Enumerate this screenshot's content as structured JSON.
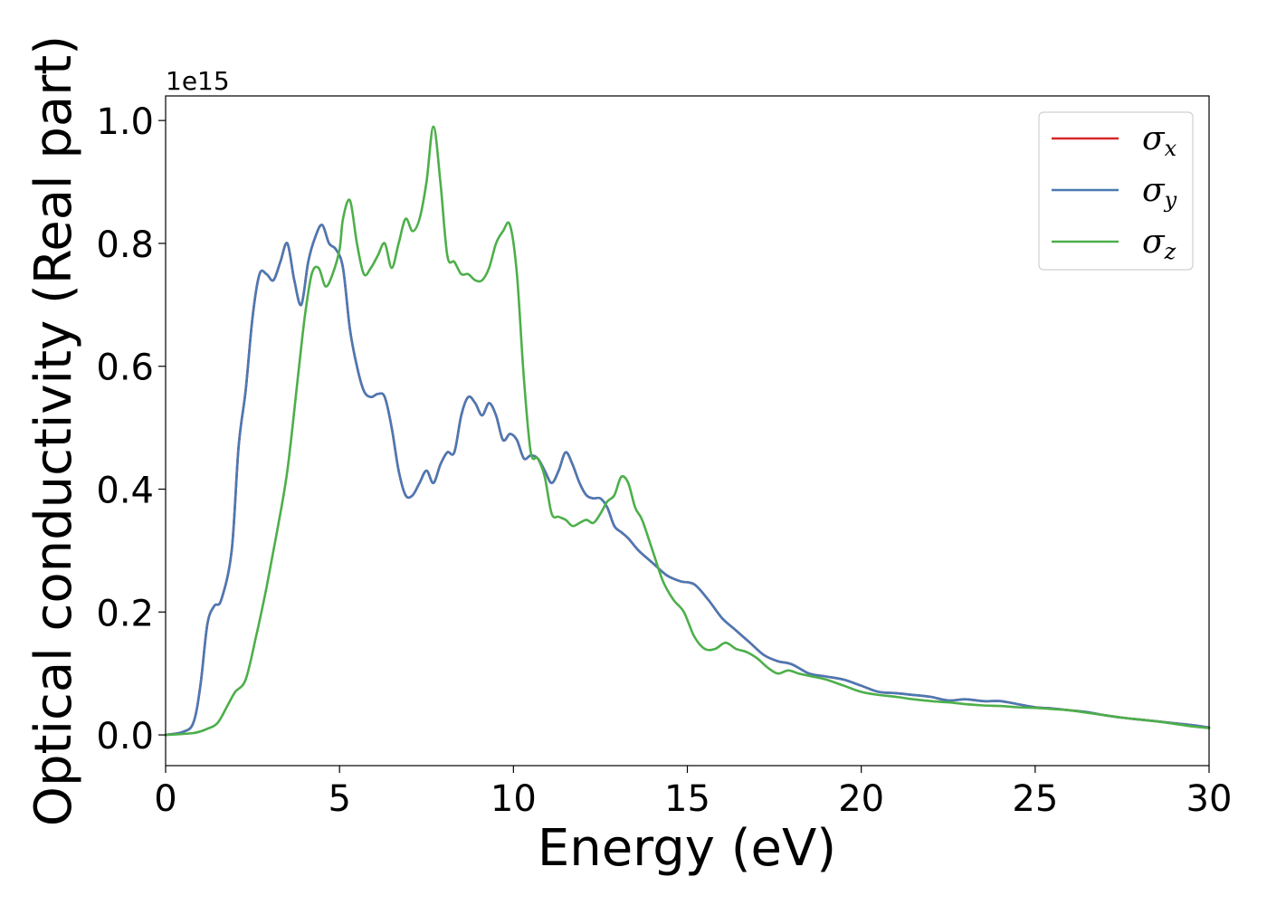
{
  "chart_data": {
    "type": "line",
    "title": "",
    "xlabel": "Energy (eV)",
    "ylabel": "Optical conductivity (Real part)",
    "y_offset_text": "1e15",
    "y_multiplier": 1000000000000000.0,
    "xlim": [
      0,
      30
    ],
    "ylim": [
      -0.05,
      1.04
    ],
    "xticks": [
      0,
      5,
      10,
      15,
      20,
      25,
      30
    ],
    "xtick_labels": [
      "0",
      "5",
      "10",
      "15",
      "20",
      "25",
      "30"
    ],
    "yticks": [
      0.0,
      0.2,
      0.4,
      0.6,
      0.8,
      1.0
    ],
    "ytick_labels": [
      "0.0",
      "0.2",
      "0.4",
      "0.6",
      "0.8",
      "1.0"
    ],
    "grid": false,
    "legend_position": "top-right",
    "series": [
      {
        "name": "σx",
        "symbol": "σ",
        "subscript": "x",
        "color": "#d62728",
        "x": [
          0,
          0.5,
          0.8,
          1.0,
          1.2,
          1.4,
          1.6,
          1.9,
          2.1,
          2.3,
          2.5,
          2.7,
          2.9,
          3.1,
          3.3,
          3.5,
          3.7,
          3.9,
          4.1,
          4.3,
          4.5,
          4.7,
          4.9,
          5.1,
          5.3,
          5.5,
          5.7,
          5.9,
          6.1,
          6.3,
          6.5,
          6.7,
          6.9,
          7.1,
          7.3,
          7.5,
          7.7,
          7.9,
          8.1,
          8.3,
          8.5,
          8.7,
          8.9,
          9.1,
          9.3,
          9.5,
          9.7,
          9.9,
          10.1,
          10.3,
          10.5,
          10.7,
          10.9,
          11.1,
          11.3,
          11.5,
          11.7,
          11.9,
          12.1,
          12.3,
          12.5,
          12.7,
          12.9,
          13.1,
          13.3,
          13.6,
          14.0,
          14.4,
          14.8,
          15.2,
          15.6,
          16.0,
          16.4,
          16.8,
          17.2,
          17.6,
          18.0,
          18.5,
          19.0,
          19.5,
          20.0,
          20.5,
          21.0,
          21.5,
          22.0,
          22.5,
          23.0,
          23.5,
          24.0,
          24.5,
          25.0,
          25.5,
          26.0,
          26.5,
          27.0,
          27.5,
          28.0,
          28.5,
          29.0,
          29.5,
          30.0
        ],
        "values": [
          0.0,
          0.005,
          0.02,
          0.08,
          0.18,
          0.21,
          0.22,
          0.3,
          0.47,
          0.56,
          0.68,
          0.75,
          0.75,
          0.74,
          0.77,
          0.8,
          0.74,
          0.7,
          0.77,
          0.81,
          0.83,
          0.8,
          0.79,
          0.76,
          0.66,
          0.6,
          0.56,
          0.55,
          0.555,
          0.55,
          0.5,
          0.43,
          0.39,
          0.39,
          0.41,
          0.43,
          0.41,
          0.44,
          0.46,
          0.46,
          0.52,
          0.55,
          0.54,
          0.52,
          0.54,
          0.52,
          0.48,
          0.49,
          0.48,
          0.45,
          0.455,
          0.45,
          0.43,
          0.41,
          0.43,
          0.46,
          0.44,
          0.41,
          0.39,
          0.385,
          0.385,
          0.37,
          0.34,
          0.33,
          0.32,
          0.3,
          0.28,
          0.26,
          0.25,
          0.245,
          0.22,
          0.19,
          0.17,
          0.15,
          0.13,
          0.12,
          0.115,
          0.1,
          0.095,
          0.09,
          0.08,
          0.07,
          0.068,
          0.065,
          0.062,
          0.056,
          0.058,
          0.055,
          0.055,
          0.05,
          0.045,
          0.043,
          0.04,
          0.037,
          0.032,
          0.028,
          0.025,
          0.022,
          0.019,
          0.016,
          0.012
        ]
      },
      {
        "name": "σy",
        "symbol": "σ",
        "subscript": "y",
        "color": "#4a79b4",
        "x": [
          0,
          0.5,
          0.8,
          1.0,
          1.2,
          1.4,
          1.6,
          1.9,
          2.1,
          2.3,
          2.5,
          2.7,
          2.9,
          3.1,
          3.3,
          3.5,
          3.7,
          3.9,
          4.1,
          4.3,
          4.5,
          4.7,
          4.9,
          5.1,
          5.3,
          5.5,
          5.7,
          5.9,
          6.1,
          6.3,
          6.5,
          6.7,
          6.9,
          7.1,
          7.3,
          7.5,
          7.7,
          7.9,
          8.1,
          8.3,
          8.5,
          8.7,
          8.9,
          9.1,
          9.3,
          9.5,
          9.7,
          9.9,
          10.1,
          10.3,
          10.5,
          10.7,
          10.9,
          11.1,
          11.3,
          11.5,
          11.7,
          11.9,
          12.1,
          12.3,
          12.5,
          12.7,
          12.9,
          13.1,
          13.3,
          13.6,
          14.0,
          14.4,
          14.8,
          15.2,
          15.6,
          16.0,
          16.4,
          16.8,
          17.2,
          17.6,
          18.0,
          18.5,
          19.0,
          19.5,
          20.0,
          20.5,
          21.0,
          21.5,
          22.0,
          22.5,
          23.0,
          23.5,
          24.0,
          24.5,
          25.0,
          25.5,
          26.0,
          26.5,
          27.0,
          27.5,
          28.0,
          28.5,
          29.0,
          29.5,
          30.0
        ],
        "values": [
          0.0,
          0.005,
          0.02,
          0.08,
          0.18,
          0.21,
          0.22,
          0.3,
          0.47,
          0.56,
          0.68,
          0.75,
          0.75,
          0.74,
          0.77,
          0.8,
          0.74,
          0.7,
          0.77,
          0.81,
          0.83,
          0.8,
          0.79,
          0.76,
          0.66,
          0.6,
          0.56,
          0.55,
          0.555,
          0.55,
          0.5,
          0.43,
          0.39,
          0.39,
          0.41,
          0.43,
          0.41,
          0.44,
          0.46,
          0.46,
          0.52,
          0.55,
          0.54,
          0.52,
          0.54,
          0.52,
          0.48,
          0.49,
          0.48,
          0.45,
          0.455,
          0.45,
          0.43,
          0.41,
          0.43,
          0.46,
          0.44,
          0.41,
          0.39,
          0.385,
          0.385,
          0.37,
          0.34,
          0.33,
          0.32,
          0.3,
          0.28,
          0.26,
          0.25,
          0.245,
          0.22,
          0.19,
          0.17,
          0.15,
          0.13,
          0.12,
          0.115,
          0.1,
          0.095,
          0.09,
          0.08,
          0.07,
          0.068,
          0.065,
          0.062,
          0.056,
          0.058,
          0.055,
          0.055,
          0.05,
          0.045,
          0.043,
          0.04,
          0.037,
          0.032,
          0.028,
          0.025,
          0.022,
          0.019,
          0.016,
          0.012
        ]
      },
      {
        "name": "σz",
        "symbol": "σ",
        "subscript": "z",
        "color": "#4daf4a",
        "x": [
          0,
          0.8,
          1.2,
          1.5,
          1.8,
          2.0,
          2.3,
          2.6,
          2.9,
          3.2,
          3.5,
          3.8,
          4.0,
          4.2,
          4.4,
          4.6,
          4.8,
          5.0,
          5.1,
          5.3,
          5.5,
          5.7,
          5.9,
          6.1,
          6.3,
          6.5,
          6.7,
          6.9,
          7.1,
          7.3,
          7.5,
          7.7,
          7.9,
          8.1,
          8.3,
          8.5,
          8.7,
          8.9,
          9.1,
          9.3,
          9.5,
          9.7,
          9.9,
          10.1,
          10.3,
          10.5,
          10.7,
          10.9,
          11.1,
          11.3,
          11.5,
          11.7,
          11.9,
          12.1,
          12.3,
          12.5,
          12.7,
          12.9,
          13.1,
          13.3,
          13.5,
          13.7,
          14.0,
          14.3,
          14.6,
          14.9,
          15.2,
          15.5,
          15.8,
          16.1,
          16.4,
          16.7,
          17.0,
          17.3,
          17.6,
          17.9,
          18.2,
          18.6,
          19.0,
          19.5,
          20.0,
          20.5,
          21.0,
          21.5,
          22.0,
          22.5,
          23.0,
          23.5,
          24.0,
          24.5,
          25.0,
          25.5,
          26.0,
          26.5,
          27.0,
          27.5,
          28.0,
          28.5,
          29.0,
          29.5,
          30.0
        ],
        "values": [
          0.0,
          0.003,
          0.01,
          0.02,
          0.05,
          0.07,
          0.09,
          0.16,
          0.24,
          0.33,
          0.43,
          0.58,
          0.68,
          0.75,
          0.76,
          0.73,
          0.75,
          0.79,
          0.84,
          0.87,
          0.8,
          0.75,
          0.76,
          0.78,
          0.8,
          0.76,
          0.8,
          0.84,
          0.82,
          0.84,
          0.9,
          0.99,
          0.9,
          0.78,
          0.77,
          0.75,
          0.75,
          0.74,
          0.74,
          0.76,
          0.8,
          0.82,
          0.83,
          0.75,
          0.58,
          0.46,
          0.45,
          0.42,
          0.36,
          0.355,
          0.35,
          0.34,
          0.345,
          0.35,
          0.345,
          0.36,
          0.38,
          0.39,
          0.42,
          0.41,
          0.37,
          0.35,
          0.3,
          0.25,
          0.22,
          0.2,
          0.16,
          0.14,
          0.14,
          0.15,
          0.14,
          0.135,
          0.125,
          0.11,
          0.1,
          0.105,
          0.1,
          0.095,
          0.09,
          0.08,
          0.07,
          0.065,
          0.062,
          0.058,
          0.055,
          0.053,
          0.05,
          0.048,
          0.047,
          0.045,
          0.044,
          0.042,
          0.04,
          0.036,
          0.032,
          0.028,
          0.025,
          0.022,
          0.018,
          0.014,
          0.011
        ]
      }
    ]
  }
}
